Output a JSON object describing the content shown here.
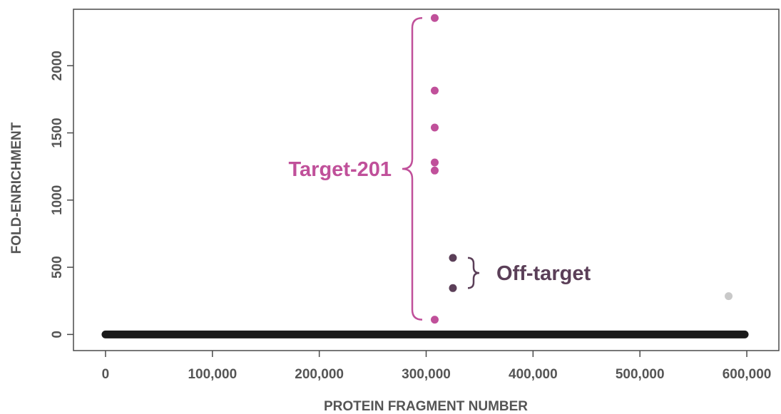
{
  "chart_data": {
    "type": "scatter",
    "title": "",
    "xlabel": "PROTEIN FRAGMENT NUMBER",
    "ylabel": "FOLD-ENRICHMENT",
    "xlim": [
      -30000,
      630000
    ],
    "ylim": [
      -120,
      2420
    ],
    "x_ticks": [
      0,
      100000,
      200000,
      300000,
      400000,
      500000,
      600000
    ],
    "x_tick_labels": [
      "0",
      "100,000",
      "200,000",
      "300,000",
      "400,000",
      "500,000",
      "600,000"
    ],
    "y_ticks": [
      0,
      500,
      1000,
      1500,
      2000
    ],
    "y_tick_labels": [
      "0",
      "500",
      "1000",
      "1500",
      "2000"
    ],
    "grid": false,
    "baseline": {
      "x_from": 0,
      "x_to": 598000,
      "y": 0
    },
    "series": [
      {
        "group": "target",
        "color": "#c0509a",
        "points": [
          [
            308000,
            2355
          ],
          [
            308000,
            1815
          ],
          [
            308000,
            1540
          ],
          [
            308000,
            1280
          ],
          [
            308000,
            1220
          ],
          [
            308000,
            110
          ]
        ]
      },
      {
        "group": "off-target",
        "color": "#5b3f58",
        "points": [
          [
            325000,
            570
          ],
          [
            325000,
            345
          ]
        ]
      },
      {
        "group": "other",
        "color": "#c9c9c9",
        "points": [
          [
            583000,
            285
          ]
        ]
      }
    ],
    "annotations": [
      {
        "text": "Target-201",
        "color": "#c0509a",
        "bracket_y": [
          110,
          2355
        ]
      },
      {
        "text": "Off-target",
        "color": "#5b3f58",
        "bracket_y": [
          345,
          570
        ]
      }
    ]
  }
}
